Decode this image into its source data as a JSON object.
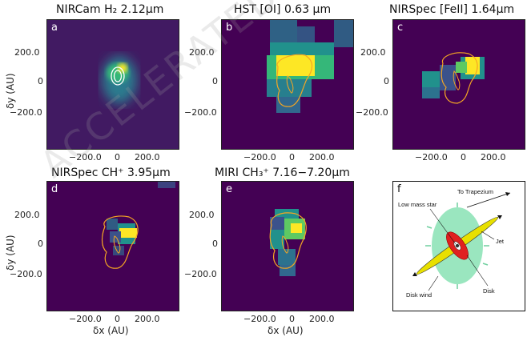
{
  "figure": {
    "watermark": "ACCELERATED ARTICLE PREVIEW",
    "colors": {
      "background": "#440154",
      "contour_orange": "#f5a623",
      "contour_white": "#ffffff",
      "disk_red": "#e02020",
      "jet_yellow": "#e8e000",
      "wind_green": "#8fe3b8"
    }
  },
  "panels": [
    {
      "letter": "a",
      "title": "NIRCam H₂ 2.12µm",
      "contour_color": "white",
      "colormap": "viridis"
    },
    {
      "letter": "b",
      "title": "HST [OI] 0.63 µm",
      "contour_color": "orange",
      "colormap": "viridis"
    },
    {
      "letter": "c",
      "title": "NIRSpec [FeII] 1.64µm",
      "contour_color": "orange",
      "colormap": "viridis"
    },
    {
      "letter": "d",
      "title": "NIRSpec CH⁺  3.95µm",
      "contour_color": "orange",
      "colormap": "viridis"
    },
    {
      "letter": "e",
      "title": "MIRI CH₃⁺  7.16−7.20µm",
      "contour_color": "orange",
      "colormap": "viridis"
    }
  ],
  "axes": {
    "ylabel": "δy (AU)",
    "xlabel": "δx (AU)",
    "y_ticks": [
      "200.0",
      "0",
      "−200.0"
    ],
    "x_ticks": [
      "−200.0",
      "0",
      "200.0"
    ]
  },
  "schematic": {
    "letter": "f",
    "labels": {
      "trapezium": "To Trapezium",
      "star": "Low mass star",
      "jet": "Jet",
      "disk": "Disk",
      "wind": "Disk wind"
    }
  }
}
